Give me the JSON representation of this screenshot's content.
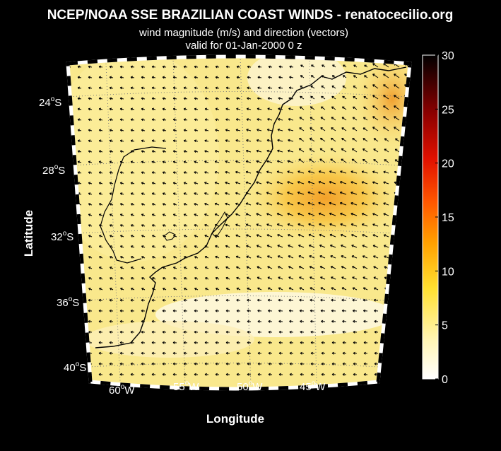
{
  "title": "NCEP/NOAA SSE BRAZILIAN COAST WINDS - renatocecilio.org",
  "subtitle_line1": "wind magnitude (m/s) and direction (vectors)",
  "subtitle_line2": "valid for 01-Jan-2000  0 z",
  "axis": {
    "xlabel": "Longitude",
    "ylabel": "Latitude",
    "lon_ticks": [
      {
        "num": "60",
        "deg": "o",
        "hemi": "W",
        "value": -60
      },
      {
        "num": "55",
        "deg": "o",
        "hemi": "W",
        "value": -55
      },
      {
        "num": "50",
        "deg": "o",
        "hemi": "W",
        "value": -50
      },
      {
        "num": "45",
        "deg": "o",
        "hemi": "W",
        "value": -45
      }
    ],
    "lat_ticks": [
      {
        "num": "24",
        "deg": "o",
        "hemi": "S",
        "value": -24
      },
      {
        "num": "28",
        "deg": "o",
        "hemi": "S",
        "value": -28
      },
      {
        "num": "32",
        "deg": "o",
        "hemi": "S",
        "value": -32
      },
      {
        "num": "36",
        "deg": "o",
        "hemi": "S",
        "value": -36
      },
      {
        "num": "40",
        "deg": "o",
        "hemi": "S",
        "value": -40
      }
    ]
  },
  "colorbar": {
    "min": 0,
    "max": 30,
    "ticks": [
      "30",
      "25",
      "20",
      "15",
      "10",
      "5",
      "0"
    ],
    "tick_values": [
      30,
      25,
      20,
      15,
      10,
      5,
      0
    ],
    "colors": [
      "#ffffff",
      "#fff7b8",
      "#ffee55",
      "#ffd020",
      "#ff9a00",
      "#ff5a00",
      "#e01000",
      "#9e0000",
      "#4a0000",
      "#000000"
    ]
  },
  "chart_data": {
    "type": "heatmap",
    "region": {
      "lon_range": [
        -62,
        -41
      ],
      "lat_range": [
        -41,
        -22
      ]
    },
    "wind_field": {
      "description_of_direction": "vectors point toward south-west to west-south-west along the coast",
      "max_magnitude": 13,
      "center_of_max": {
        "lon": -47,
        "lat": -29.5
      }
    },
    "cbar_limits": [
      0,
      30
    ]
  }
}
